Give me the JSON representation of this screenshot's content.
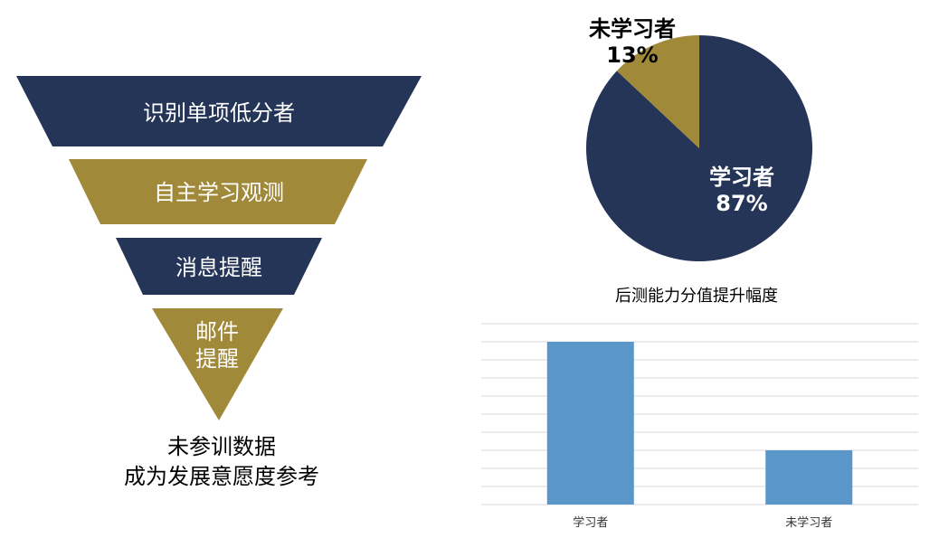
{
  "funnel": {
    "stages": [
      {
        "label": "识别单项低分者",
        "color": "#253558"
      },
      {
        "label": "自主学习观测",
        "color": "#a1893a"
      },
      {
        "label": "消息提醒",
        "color": "#253558"
      },
      {
        "label": "邮件\n提醒",
        "color": "#a1893a"
      }
    ],
    "caption": "未参训数据\n成为发展意愿度参考"
  },
  "colors": {
    "navy": "#253558",
    "gold": "#a1893a",
    "bar": "#5b96c9",
    "grid": "#d9d9d9"
  },
  "chart_data": [
    {
      "type": "pie",
      "slices": [
        {
          "label": "学习者",
          "value": 87,
          "value_label": "87%",
          "color": "#253558"
        },
        {
          "label": "未学习者",
          "value": 13,
          "value_label": "13%",
          "color": "#a1893a"
        }
      ]
    },
    {
      "type": "bar",
      "title": "后测能力分值提升幅度",
      "categories": [
        "学习者",
        "未学习者"
      ],
      "values": [
        9,
        3
      ],
      "ylim": [
        0,
        10
      ],
      "grid": true,
      "y_tick_labels_shown": false
    }
  ]
}
